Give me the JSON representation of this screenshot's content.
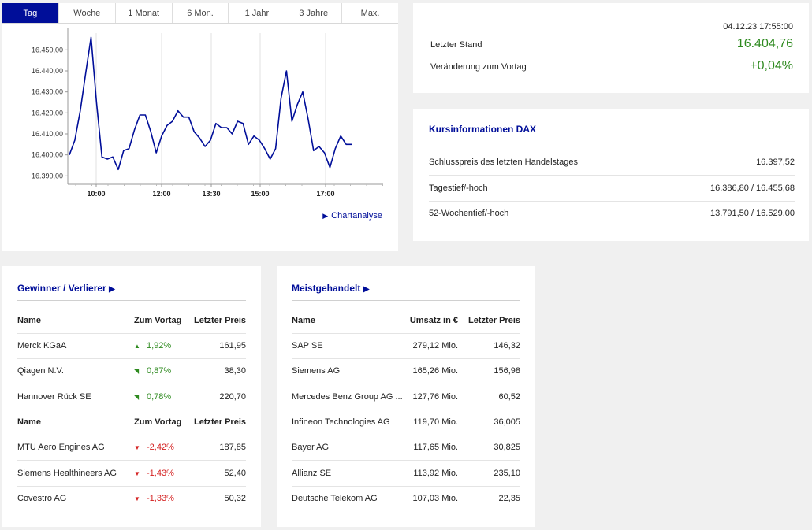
{
  "tabs": [
    "Tag",
    "Woche",
    "1 Monat",
    "6 Mon.",
    "1 Jahr",
    "3 Jahre",
    "Max."
  ],
  "active_tab": 0,
  "chart_link": "Chartanalyse",
  "chart_data": {
    "type": "line",
    "x_ticks": [
      "10:00",
      "12:00",
      "13:30",
      "15:00",
      "17:00"
    ],
    "y_ticks": [
      "16.450,00",
      "16.440,00",
      "16.430,00",
      "16.420,00",
      "16.410,00",
      "16.400,00",
      "16.390,00"
    ],
    "ylim": [
      16386,
      16458
    ],
    "series": [
      {
        "color": "#000e99",
        "values": [
          16400,
          16407,
          16421,
          16439,
          16456,
          16425,
          16399,
          16398,
          16399,
          16393,
          16402,
          16403,
          16412,
          16419,
          16419,
          16411,
          16401,
          16409,
          16414,
          16416,
          16421,
          16418,
          16418,
          16411,
          16408,
          16404,
          16407,
          16415,
          16413,
          16413,
          16410,
          16416,
          16415,
          16405,
          16409,
          16407,
          16403,
          16398,
          16403,
          16427,
          16440,
          16416,
          16424,
          16430,
          16417,
          16402,
          16404,
          16401,
          16394,
          16403,
          16409,
          16405,
          16405
        ]
      }
    ]
  },
  "quote": {
    "timestamp": "04.12.23 17:55:00",
    "last_label": "Letzter Stand",
    "last_value": "16.404,76",
    "change_label": "Veränderung zum Vortag",
    "change_value": "+0,04%",
    "value_color": "#2e8a1f"
  },
  "info": {
    "title": "Kursinformationen DAX",
    "rows": [
      {
        "label": "Schlusspreis des letzten Handelstages",
        "value": "16.397,52"
      },
      {
        "label": "Tagestief/-hoch",
        "value": "16.386,80 / 16.455,68"
      },
      {
        "label": "52-Wochentief/-hoch",
        "value": "13.791,50 / 16.529,00"
      }
    ]
  },
  "gainers": {
    "title": "Gewinner / Verlierer",
    "headers": [
      "Name",
      "Zum Vortag",
      "Letzter Preis"
    ],
    "winners": [
      {
        "name": "Merck KGaA",
        "change": "1,92%",
        "price": "161,95"
      },
      {
        "name": "Qiagen N.V.",
        "change": "0,87%",
        "price": "38,30"
      },
      {
        "name": "Hannover Rück SE",
        "change": "0,78%",
        "price": "220,70"
      }
    ],
    "losers": [
      {
        "name": "MTU Aero Engines AG",
        "change": "-2,42%",
        "price": "187,85"
      },
      {
        "name": "Siemens Healthineers AG",
        "change": "-1,43%",
        "price": "52,40"
      },
      {
        "name": "Covestro AG",
        "change": "-1,33%",
        "price": "50,32"
      }
    ]
  },
  "traded": {
    "title": "Meistgehandelt",
    "headers": [
      "Name",
      "Umsatz in €",
      "Letzter Preis"
    ],
    "rows": [
      {
        "name": "SAP SE",
        "volume": "279,12 Mio.",
        "price": "146,32"
      },
      {
        "name": "Siemens AG",
        "volume": "165,26 Mio.",
        "price": "156,98"
      },
      {
        "name": "Mercedes Benz Group AG ...",
        "volume": "127,76 Mio.",
        "price": "60,52"
      },
      {
        "name": "Infineon Technologies AG",
        "volume": "119,70 Mio.",
        "price": "36,005"
      },
      {
        "name": "Bayer AG",
        "volume": "117,65 Mio.",
        "price": "30,825"
      },
      {
        "name": "Allianz SE",
        "volume": "113,92 Mio.",
        "price": "235,10"
      },
      {
        "name": "Deutsche Telekom AG",
        "volume": "107,03 Mio.",
        "price": "22,35"
      }
    ]
  }
}
